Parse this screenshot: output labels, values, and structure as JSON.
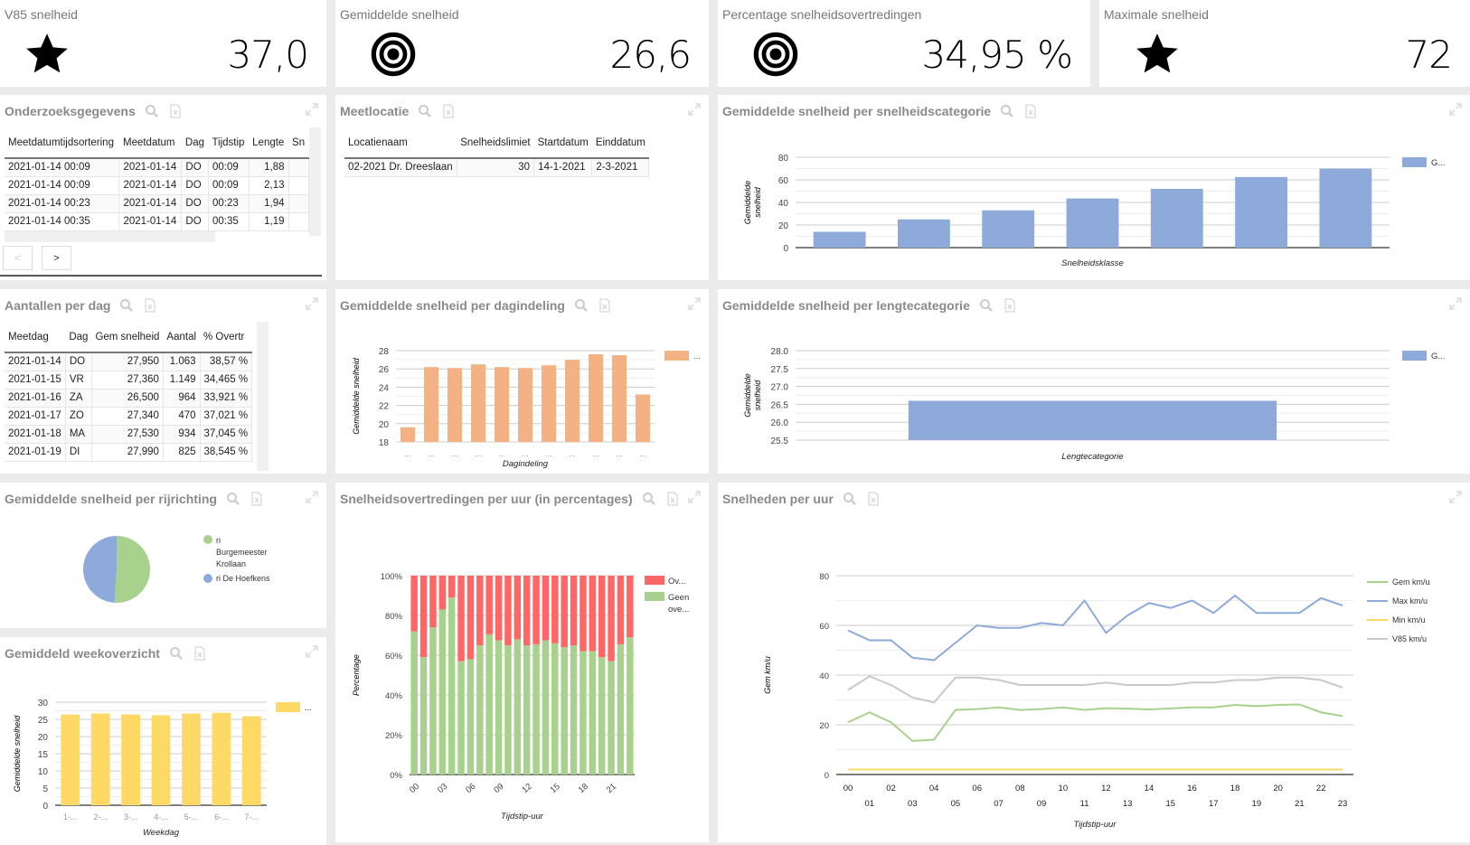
{
  "kpis": [
    {
      "title": "V85 snelheid",
      "value": "37,0",
      "icon": "star-icon"
    },
    {
      "title": "Gemiddelde snelheid",
      "value": "26,6",
      "icon": "target-icon"
    },
    {
      "title": "Percentage snelheidsovertredingen",
      "value": "34,95 %",
      "icon": "target-icon"
    },
    {
      "title": "Maximale snelheid",
      "value": "72",
      "icon": "star-icon"
    }
  ],
  "panels": {
    "onderzoek": "Onderzoeksgegevens",
    "meetlocatie": "Meetlocatie",
    "cat": "Gemiddelde snelheid per snelheidscategorie",
    "perdag": "Aantallen per dag",
    "dagindeling": "Gemiddelde snelheid per dagindeling",
    "lengte": "Gemiddelde snelheid per lengtecategorie",
    "rijrichting": "Gemiddelde snelheid per rijrichting",
    "overtr": "Snelheidsovertredingen per uur (in percentages)",
    "peruur": "Snelheden per uur",
    "week": "Gemiddeld weekoverzicht"
  },
  "onderzoek_table": {
    "headers": [
      "Meetdatumtijdsortering",
      "Meetdatum",
      "Dag",
      "Tijdstip",
      "Lengte",
      "Sn"
    ],
    "rows": [
      [
        "2021-01-14 00:09",
        "2021-01-14",
        "DO",
        "00:09",
        "1,88",
        ""
      ],
      [
        "2021-01-14 00:09",
        "2021-01-14",
        "DO",
        "00:09",
        "2,13",
        ""
      ],
      [
        "2021-01-14 00:23",
        "2021-01-14",
        "DO",
        "00:23",
        "1,94",
        ""
      ],
      [
        "2021-01-14 00:35",
        "2021-01-14",
        "DO",
        "00:35",
        "1,19",
        ""
      ]
    ],
    "prev": "<",
    "next": ">"
  },
  "meetlocatie_table": {
    "headers": [
      "Locatienaam",
      "Snelheidslimiet",
      "Startdatum",
      "Einddatum"
    ],
    "rows": [
      [
        "02-2021 Dr. Dreeslaan",
        "30",
        "14-1-2021",
        "2-3-2021"
      ]
    ]
  },
  "perdag_table": {
    "headers": [
      "Meetdag",
      "Dag",
      "Gem snelheid",
      "Aantal",
      "% Overtr"
    ],
    "rows": [
      [
        "2021-01-14",
        "DO",
        "27,950",
        "1.063",
        "38,57 %"
      ],
      [
        "2021-01-15",
        "VR",
        "27,360",
        "1.149",
        "34,465 %"
      ],
      [
        "2021-01-16",
        "ZA",
        "26,500",
        "964",
        "33,921 %"
      ],
      [
        "2021-01-17",
        "ZO",
        "27,340",
        "470",
        "37,021 %"
      ],
      [
        "2021-01-18",
        "MA",
        "27,530",
        "934",
        "37,045 %"
      ],
      [
        "2021-01-19",
        "DI",
        "27,990",
        "825",
        "38,545 %"
      ]
    ]
  },
  "chart_data": {
    "cat": {
      "type": "bar",
      "values": [
        14,
        25,
        33,
        43.5,
        52,
        62.5,
        70
      ],
      "ylim": [
        0,
        80
      ],
      "yticks": [
        0,
        20,
        40,
        60,
        80
      ],
      "xlabel": "Snelheidsklasse",
      "ylabel": "Gemiddelde snelheid",
      "legend": "G...",
      "legend_position": "right",
      "color": "#8eaadb"
    },
    "dagindeling": {
      "type": "bar",
      "categories": [
        "...",
        "...",
        "...",
        "...",
        "...",
        "...",
        "...",
        "...",
        "...",
        "...",
        "..."
      ],
      "values": [
        19.6,
        26.2,
        26.1,
        26.5,
        26.2,
        26.1,
        26.4,
        27.0,
        27.6,
        27.5,
        23.2
      ],
      "ylim": [
        18,
        28
      ],
      "yticks": [
        18,
        20,
        22,
        24,
        26,
        28
      ],
      "xlabel": "Dagindeling",
      "ylabel": "Gemiddelde snelheid",
      "legend": "...",
      "legend_position": "right",
      "color": "#f4b183"
    },
    "lengte": {
      "type": "bar",
      "values": [
        26.6
      ],
      "ylim": [
        25.5,
        28.0
      ],
      "yticks": [
        "25.5",
        "26.0",
        "26.5",
        "27.0",
        "27.5",
        "28.0"
      ],
      "xlabel": "Lengtecategorie",
      "ylabel": "Gemiddelde snelheid",
      "legend": "G...",
      "legend_position": "right",
      "color": "#8eaadb"
    },
    "rijrichting": {
      "type": "pie",
      "slices": [
        {
          "name": "ri Burgemeester Krollaan",
          "value": 51,
          "color": "#a9d18e"
        },
        {
          "name": "ri De Hoefkens",
          "value": 49,
          "color": "#8eaadb"
        }
      ],
      "legend_position": "right"
    },
    "overtr": {
      "type": "bar",
      "stacked": true,
      "categories": [
        "00",
        "01",
        "02",
        "03",
        "04",
        "05",
        "06",
        "07",
        "08",
        "09",
        "10",
        "11",
        "12",
        "13",
        "14",
        "15",
        "16",
        "17",
        "18",
        "19",
        "20",
        "21",
        "22",
        "23"
      ],
      "xticks": [
        "00",
        "03",
        "06",
        "09",
        "12",
        "15",
        "18",
        "21"
      ],
      "series": [
        {
          "name": "Geen ove...",
          "color": "#a9d18e",
          "values": [
            72,
            59,
            74,
            83,
            89,
            57,
            58,
            65,
            70.5,
            67.5,
            65,
            68,
            65,
            65.5,
            67.5,
            66,
            64,
            65,
            62,
            62,
            59,
            57,
            65.5,
            69
          ]
        },
        {
          "name": "Ov...",
          "color": "#ff6666",
          "values": [
            28,
            41,
            26,
            17,
            11,
            43,
            42,
            35,
            29.5,
            32.5,
            35,
            32,
            35,
            34.5,
            32.5,
            34,
            36,
            35,
            38,
            38,
            41,
            43,
            34.5,
            31
          ]
        }
      ],
      "ylim": [
        0,
        100
      ],
      "yticks": [
        "0%",
        "20%",
        "40%",
        "60%",
        "80%",
        "100%"
      ],
      "xlabel": "Tijdstip-uur",
      "ylabel": "Percentage",
      "legend_position": "right"
    },
    "peruur": {
      "type": "line",
      "x": [
        "00",
        "01",
        "02",
        "03",
        "04",
        "05",
        "06",
        "07",
        "08",
        "09",
        "10",
        "11",
        "12",
        "13",
        "14",
        "15",
        "16",
        "17",
        "18",
        "19",
        "20",
        "21",
        "22",
        "23"
      ],
      "series": [
        {
          "name": "Gem km/u",
          "color": "#a9d18e",
          "values": [
            21,
            25,
            21,
            13.5,
            14,
            26,
            26.3,
            27,
            26,
            26.3,
            27,
            26,
            26.7,
            26.5,
            26.2,
            26.6,
            27,
            27,
            28,
            27.5,
            28,
            28.2,
            25,
            23.5
          ]
        },
        {
          "name": "Max km/u",
          "color": "#8eaadb",
          "values": [
            58,
            54,
            54,
            47,
            46,
            53,
            60,
            59,
            59,
            61,
            60,
            70,
            57,
            64,
            69,
            67,
            70,
            65,
            72,
            65,
            65,
            65,
            71,
            68
          ]
        },
        {
          "name": "Min km/u",
          "color": "#ffd966",
          "values": [
            2,
            2,
            2,
            2,
            2,
            2,
            2,
            2,
            2,
            2,
            2,
            2,
            2,
            2,
            2,
            2,
            2,
            2,
            2,
            2,
            2,
            2,
            2,
            2
          ]
        },
        {
          "name": "V85 km/u",
          "color": "#c9c9c9",
          "values": [
            34,
            39.5,
            36,
            31,
            29,
            39,
            39,
            38,
            36,
            36,
            36,
            36,
            37,
            36,
            36,
            36,
            37,
            37,
            38,
            38,
            39,
            39,
            38,
            35
          ]
        }
      ],
      "ylim": [
        0,
        80
      ],
      "yticks": [
        0,
        20,
        40,
        60,
        80
      ],
      "xlabel": "Tijdstip-uur",
      "ylabel": "Gem km/u",
      "legend_position": "right"
    },
    "week": {
      "type": "bar",
      "categories": [
        "1-...",
        "2-...",
        "3-...",
        "4-...",
        "5-...",
        "6-...",
        "7-..."
      ],
      "values": [
        26.4,
        26.7,
        26.4,
        26.2,
        26.7,
        26.9,
        25.9
      ],
      "ylim": [
        0,
        30
      ],
      "yticks": [
        0,
        5,
        10,
        15,
        20,
        25,
        30
      ],
      "xlabel": "Weekdag",
      "ylabel": "Gemiddelde snelheid",
      "legend": "...",
      "legend_position": "right",
      "color": "#ffd966"
    }
  }
}
